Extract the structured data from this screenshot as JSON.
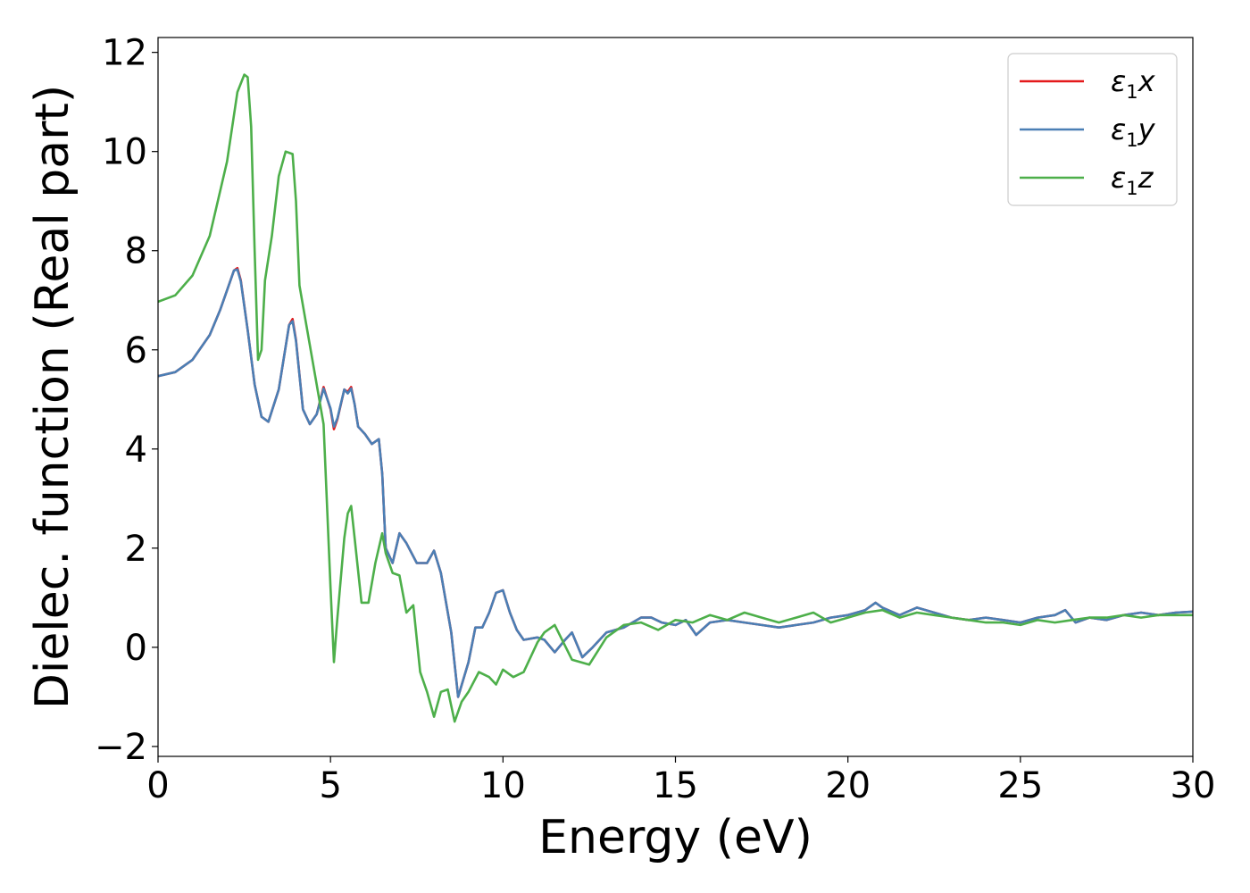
{
  "chart_data": {
    "type": "line",
    "xlabel": "Energy (eV)",
    "ylabel": "Dielec. function (Real part)",
    "xlim": [
      0,
      30
    ],
    "ylim": [
      -2.2,
      12.3
    ],
    "xticks": [
      0,
      5,
      10,
      15,
      20,
      25,
      30
    ],
    "xtick_labels": [
      "0",
      "5",
      "10",
      "15",
      "20",
      "25",
      "30"
    ],
    "yticks": [
      -2,
      0,
      2,
      4,
      6,
      8,
      10,
      12
    ],
    "ytick_labels": [
      "−2",
      "0",
      "2",
      "4",
      "6",
      "8",
      "10",
      "12"
    ],
    "grid": false,
    "legend_position": "top-right",
    "series": [
      {
        "name": "ε1x",
        "legend": {
          "base": "ε",
          "sub": "1",
          "tail": "x"
        },
        "color": "#e41a1c",
        "x": [
          0,
          0.5,
          1,
          1.5,
          1.8,
          2.0,
          2.2,
          2.3,
          2.4,
          2.6,
          2.8,
          3.0,
          3.2,
          3.5,
          3.8,
          3.9,
          4.0,
          4.2,
          4.4,
          4.6,
          4.8,
          5.0,
          5.1,
          5.2,
          5.4,
          5.5,
          5.6,
          5.7,
          5.8,
          6.0,
          6.2,
          6.4,
          6.5,
          6.6,
          6.8,
          7.0,
          7.2,
          7.5,
          7.8,
          8.0,
          8.2,
          8.5,
          8.7,
          9.0,
          9.2,
          9.4,
          9.6,
          9.8,
          10.0,
          10.2,
          10.4,
          10.6,
          11.0,
          11.2,
          11.5,
          11.8,
          12.0,
          12.3,
          12.6,
          13.0,
          13.5,
          14.0,
          14.3,
          14.6,
          15.0,
          15.3,
          15.6,
          16.0,
          16.5,
          17.0,
          17.5,
          18.0,
          18.5,
          19.0,
          19.5,
          20.0,
          20.5,
          20.8,
          21.0,
          21.5,
          22.0,
          22.5,
          23.0,
          23.5,
          24.0,
          24.5,
          25.0,
          25.5,
          26.0,
          26.3,
          26.6,
          27.0,
          27.5,
          28.0,
          28.5,
          29.0,
          29.5,
          30.0
        ],
        "values": [
          5.47,
          5.55,
          5.8,
          6.3,
          6.8,
          7.2,
          7.6,
          7.65,
          7.4,
          6.4,
          5.3,
          4.65,
          4.55,
          5.2,
          6.5,
          6.62,
          6.2,
          4.8,
          4.5,
          4.7,
          5.25,
          4.8,
          4.4,
          4.6,
          5.2,
          5.15,
          5.25,
          4.9,
          4.45,
          4.3,
          4.1,
          4.2,
          3.5,
          2.0,
          1.7,
          2.3,
          2.1,
          1.7,
          1.7,
          1.95,
          1.5,
          0.3,
          -1.0,
          -0.3,
          0.4,
          0.4,
          0.7,
          1.1,
          1.15,
          0.7,
          0.35,
          0.15,
          0.2,
          0.15,
          -0.1,
          0.15,
          0.3,
          -0.2,
          0.0,
          0.3,
          0.4,
          0.6,
          0.6,
          0.5,
          0.45,
          0.55,
          0.25,
          0.5,
          0.55,
          0.5,
          0.45,
          0.4,
          0.45,
          0.5,
          0.6,
          0.65,
          0.75,
          0.9,
          0.8,
          0.65,
          0.8,
          0.7,
          0.6,
          0.55,
          0.6,
          0.55,
          0.5,
          0.6,
          0.65,
          0.75,
          0.5,
          0.6,
          0.55,
          0.65,
          0.7,
          0.65,
          0.7,
          0.72
        ]
      },
      {
        "name": "ε1y",
        "legend": {
          "base": "ε",
          "sub": "1",
          "tail": "y"
        },
        "color": "#4a7fb5",
        "x": [
          0,
          0.5,
          1,
          1.5,
          1.8,
          2.0,
          2.2,
          2.3,
          2.4,
          2.6,
          2.8,
          3.0,
          3.2,
          3.5,
          3.8,
          3.9,
          4.0,
          4.2,
          4.4,
          4.6,
          4.8,
          5.0,
          5.1,
          5.2,
          5.4,
          5.5,
          5.6,
          5.7,
          5.8,
          6.0,
          6.2,
          6.4,
          6.5,
          6.6,
          6.8,
          7.0,
          7.2,
          7.5,
          7.8,
          8.0,
          8.2,
          8.5,
          8.7,
          9.0,
          9.2,
          9.4,
          9.6,
          9.8,
          10.0,
          10.2,
          10.4,
          10.6,
          11.0,
          11.2,
          11.5,
          11.8,
          12.0,
          12.3,
          12.6,
          13.0,
          13.5,
          14.0,
          14.3,
          14.6,
          15.0,
          15.3,
          15.6,
          16.0,
          16.5,
          17.0,
          17.5,
          18.0,
          18.5,
          19.0,
          19.5,
          20.0,
          20.5,
          20.8,
          21.0,
          21.5,
          22.0,
          22.5,
          23.0,
          23.5,
          24.0,
          24.5,
          25.0,
          25.5,
          26.0,
          26.3,
          26.6,
          27.0,
          27.5,
          28.0,
          28.5,
          29.0,
          29.5,
          30.0
        ],
        "values": [
          5.47,
          5.55,
          5.8,
          6.3,
          6.8,
          7.2,
          7.6,
          7.62,
          7.38,
          6.4,
          5.3,
          4.65,
          4.55,
          5.2,
          6.5,
          6.58,
          6.18,
          4.8,
          4.5,
          4.7,
          5.22,
          4.82,
          4.45,
          4.62,
          5.2,
          5.12,
          5.22,
          4.9,
          4.45,
          4.3,
          4.1,
          4.2,
          3.5,
          2.0,
          1.7,
          2.3,
          2.1,
          1.7,
          1.7,
          1.95,
          1.5,
          0.3,
          -1.0,
          -0.3,
          0.4,
          0.4,
          0.7,
          1.1,
          1.15,
          0.7,
          0.35,
          0.15,
          0.2,
          0.15,
          -0.1,
          0.15,
          0.3,
          -0.2,
          0.0,
          0.3,
          0.4,
          0.6,
          0.6,
          0.5,
          0.45,
          0.55,
          0.25,
          0.5,
          0.55,
          0.5,
          0.45,
          0.4,
          0.45,
          0.5,
          0.6,
          0.65,
          0.75,
          0.9,
          0.8,
          0.65,
          0.8,
          0.7,
          0.6,
          0.55,
          0.6,
          0.55,
          0.5,
          0.6,
          0.65,
          0.75,
          0.5,
          0.6,
          0.55,
          0.65,
          0.7,
          0.65,
          0.7,
          0.72
        ]
      },
      {
        "name": "ε1z",
        "legend": {
          "base": "ε",
          "sub": "1",
          "tail": "z"
        },
        "color": "#4daf4a",
        "x": [
          0,
          0.5,
          1,
          1.5,
          2.0,
          2.3,
          2.5,
          2.6,
          2.7,
          2.8,
          2.9,
          3.0,
          3.1,
          3.3,
          3.5,
          3.7,
          3.9,
          4.0,
          4.1,
          4.3,
          4.6,
          4.8,
          5.0,
          5.1,
          5.2,
          5.4,
          5.5,
          5.6,
          5.7,
          5.9,
          6.1,
          6.3,
          6.5,
          6.6,
          6.8,
          7.0,
          7.2,
          7.4,
          7.6,
          7.8,
          8.0,
          8.2,
          8.4,
          8.6,
          8.8,
          9.0,
          9.3,
          9.6,
          9.8,
          10.0,
          10.3,
          10.6,
          11.0,
          11.2,
          11.5,
          12.0,
          12.5,
          13.0,
          13.5,
          14.0,
          14.5,
          15.0,
          15.5,
          16.0,
          16.5,
          17.0,
          17.5,
          18.0,
          18.5,
          19.0,
          19.5,
          20.0,
          20.5,
          21.0,
          21.5,
          22.0,
          22.5,
          23.0,
          23.5,
          24.0,
          24.5,
          25.0,
          25.5,
          26.0,
          26.5,
          27.0,
          27.5,
          28.0,
          28.5,
          29.0,
          29.5,
          30.0
        ],
        "values": [
          6.97,
          7.1,
          7.5,
          8.3,
          9.8,
          11.2,
          11.55,
          11.5,
          10.5,
          8.0,
          5.8,
          6.0,
          7.4,
          8.3,
          9.5,
          10.0,
          9.95,
          9.0,
          7.3,
          6.5,
          5.3,
          4.5,
          1.2,
          -0.3,
          0.6,
          2.2,
          2.7,
          2.85,
          2.2,
          0.9,
          0.9,
          1.7,
          2.3,
          1.9,
          1.5,
          1.45,
          0.7,
          0.85,
          -0.5,
          -0.9,
          -1.4,
          -0.9,
          -0.85,
          -1.5,
          -1.1,
          -0.9,
          -0.5,
          -0.6,
          -0.75,
          -0.45,
          -0.6,
          -0.5,
          0.1,
          0.3,
          0.45,
          -0.25,
          -0.35,
          0.2,
          0.45,
          0.5,
          0.35,
          0.55,
          0.5,
          0.65,
          0.55,
          0.7,
          0.6,
          0.5,
          0.6,
          0.7,
          0.5,
          0.6,
          0.7,
          0.75,
          0.6,
          0.7,
          0.65,
          0.6,
          0.55,
          0.5,
          0.5,
          0.45,
          0.55,
          0.5,
          0.55,
          0.6,
          0.6,
          0.65,
          0.6,
          0.65,
          0.65,
          0.65
        ]
      }
    ]
  }
}
